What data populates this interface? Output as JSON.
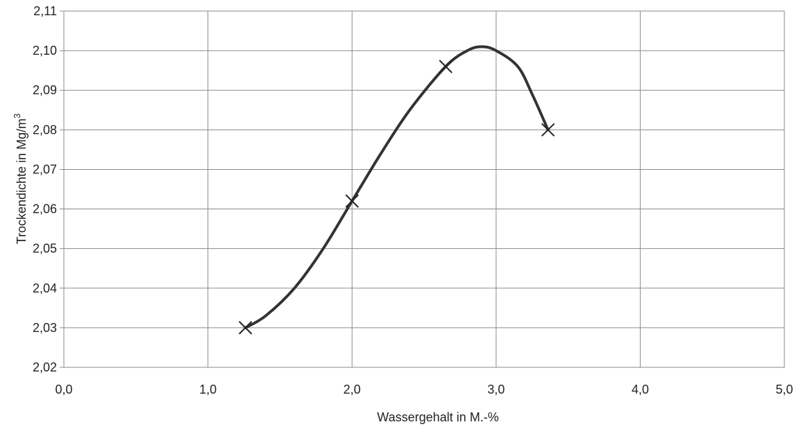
{
  "chart_data": {
    "type": "scatter",
    "title": "",
    "xlabel": "Wassergehalt in M.-%",
    "ylabel": "Trockendichte in Mg/m",
    "ylabel_superscript": "3",
    "xlim": [
      0.0,
      5.0
    ],
    "ylim": [
      2.02,
      2.11
    ],
    "x_ticks": [
      0.0,
      1.0,
      2.0,
      3.0,
      4.0,
      5.0
    ],
    "y_ticks": [
      2.02,
      2.03,
      2.04,
      2.05,
      2.06,
      2.07,
      2.08,
      2.09,
      2.1,
      2.11
    ],
    "x_tick_labels": [
      "0,0",
      "1,0",
      "2,0",
      "3,0",
      "4,0",
      "5,0"
    ],
    "y_tick_labels": [
      "2,02",
      "2,03",
      "2,04",
      "2,05",
      "2,06",
      "2,07",
      "2,08",
      "2,09",
      "2,10",
      "2,11"
    ],
    "grid": true,
    "series": [
      {
        "marker": "x",
        "points": [
          {
            "x": 1.26,
            "y": 2.03
          },
          {
            "x": 2.0,
            "y": 2.062
          },
          {
            "x": 2.65,
            "y": 2.096
          },
          {
            "x": 3.36,
            "y": 2.08
          }
        ]
      }
    ],
    "fitted_curve": {
      "points": [
        {
          "x": 1.26,
          "y": 2.03
        },
        {
          "x": 1.4,
          "y": 2.033
        },
        {
          "x": 1.6,
          "y": 2.04
        },
        {
          "x": 1.8,
          "y": 2.05
        },
        {
          "x": 2.0,
          "y": 2.062
        },
        {
          "x": 2.2,
          "y": 2.074
        },
        {
          "x": 2.4,
          "y": 2.085
        },
        {
          "x": 2.65,
          "y": 2.096
        },
        {
          "x": 2.8,
          "y": 2.1
        },
        {
          "x": 2.9,
          "y": 2.101
        },
        {
          "x": 3.0,
          "y": 2.1
        },
        {
          "x": 3.15,
          "y": 2.096
        },
        {
          "x": 3.25,
          "y": 2.089
        },
        {
          "x": 3.36,
          "y": 2.08
        }
      ]
    },
    "colors": {
      "curve": "#333333",
      "marker": "#222222",
      "grid": "#8a8a8a",
      "text": "#222222"
    }
  }
}
